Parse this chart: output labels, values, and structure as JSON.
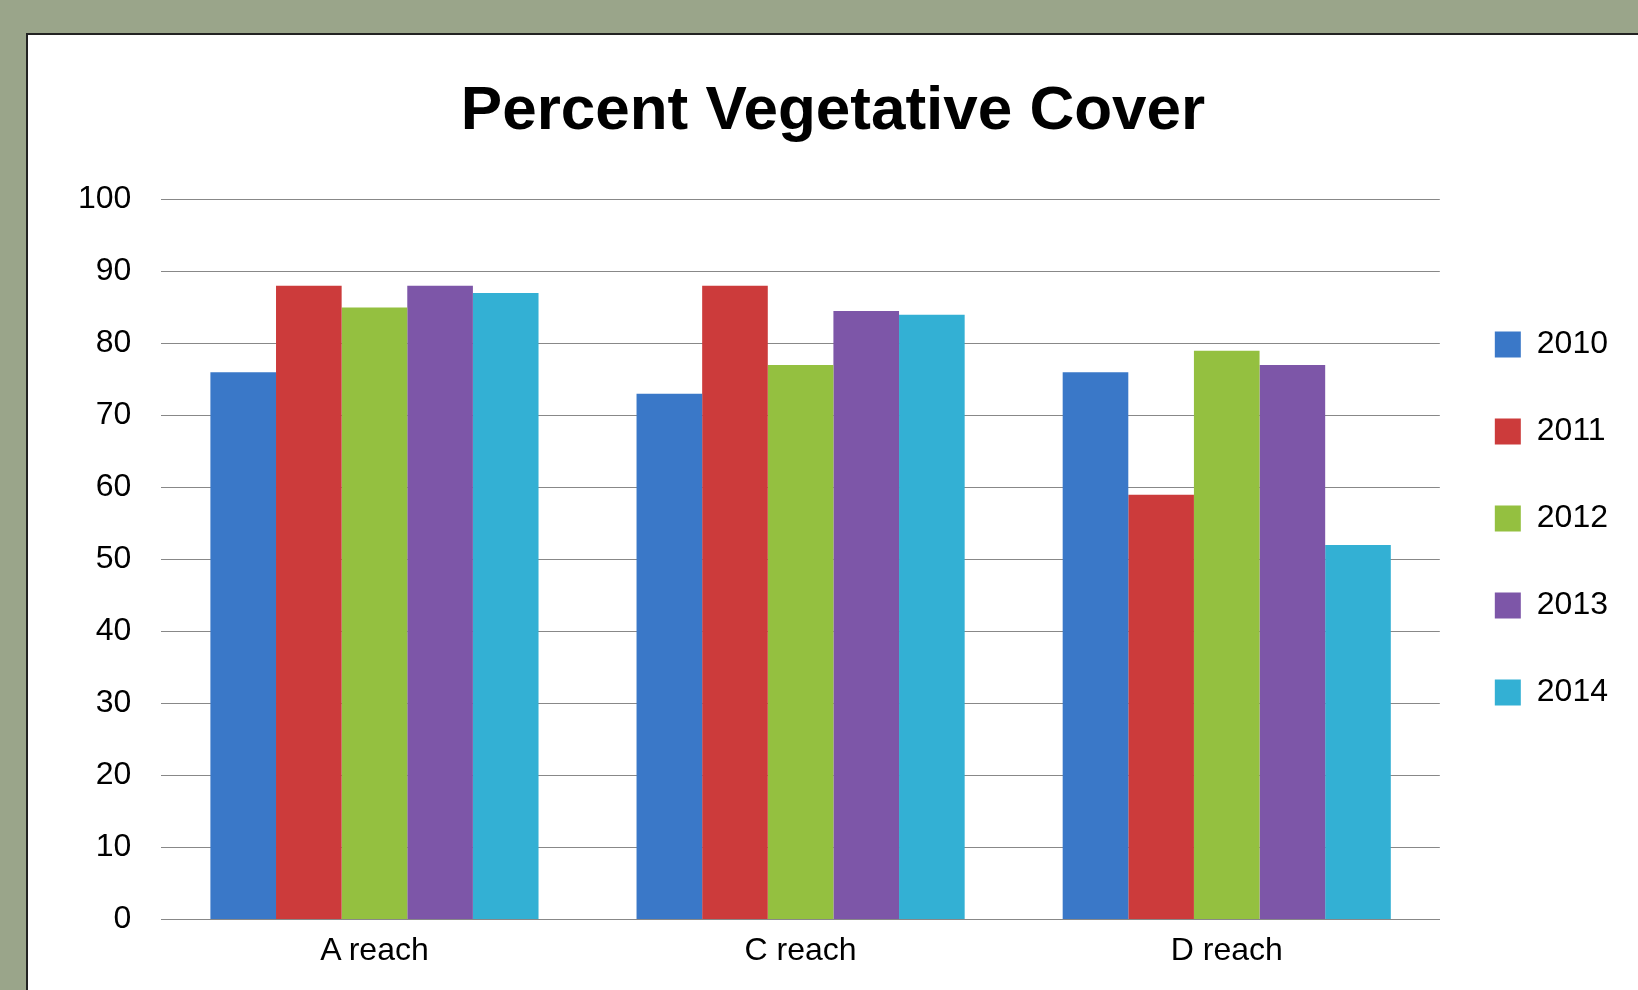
{
  "chart_data": {
    "type": "bar",
    "title": "Percent Vegetative Cover",
    "categories": [
      "A reach",
      "C reach",
      "D reach"
    ],
    "series": [
      {
        "name": "2010",
        "color": "#3a78c8",
        "values": [
          76,
          73,
          76
        ]
      },
      {
        "name": "2011",
        "color": "#cc3b3b",
        "values": [
          88,
          88,
          59
        ]
      },
      {
        "name": "2012",
        "color": "#94c040",
        "values": [
          85,
          77,
          79
        ]
      },
      {
        "name": "2013",
        "color": "#7d56a8",
        "values": [
          88,
          84.5,
          77
        ]
      },
      {
        "name": "2014",
        "color": "#33b0d4",
        "values": [
          87,
          84,
          52
        ]
      }
    ],
    "ylim": [
      0,
      100
    ],
    "yticks": [
      0,
      10,
      20,
      30,
      40,
      50,
      60,
      70,
      80,
      90,
      100
    ],
    "grid": "y",
    "legend": "right"
  }
}
